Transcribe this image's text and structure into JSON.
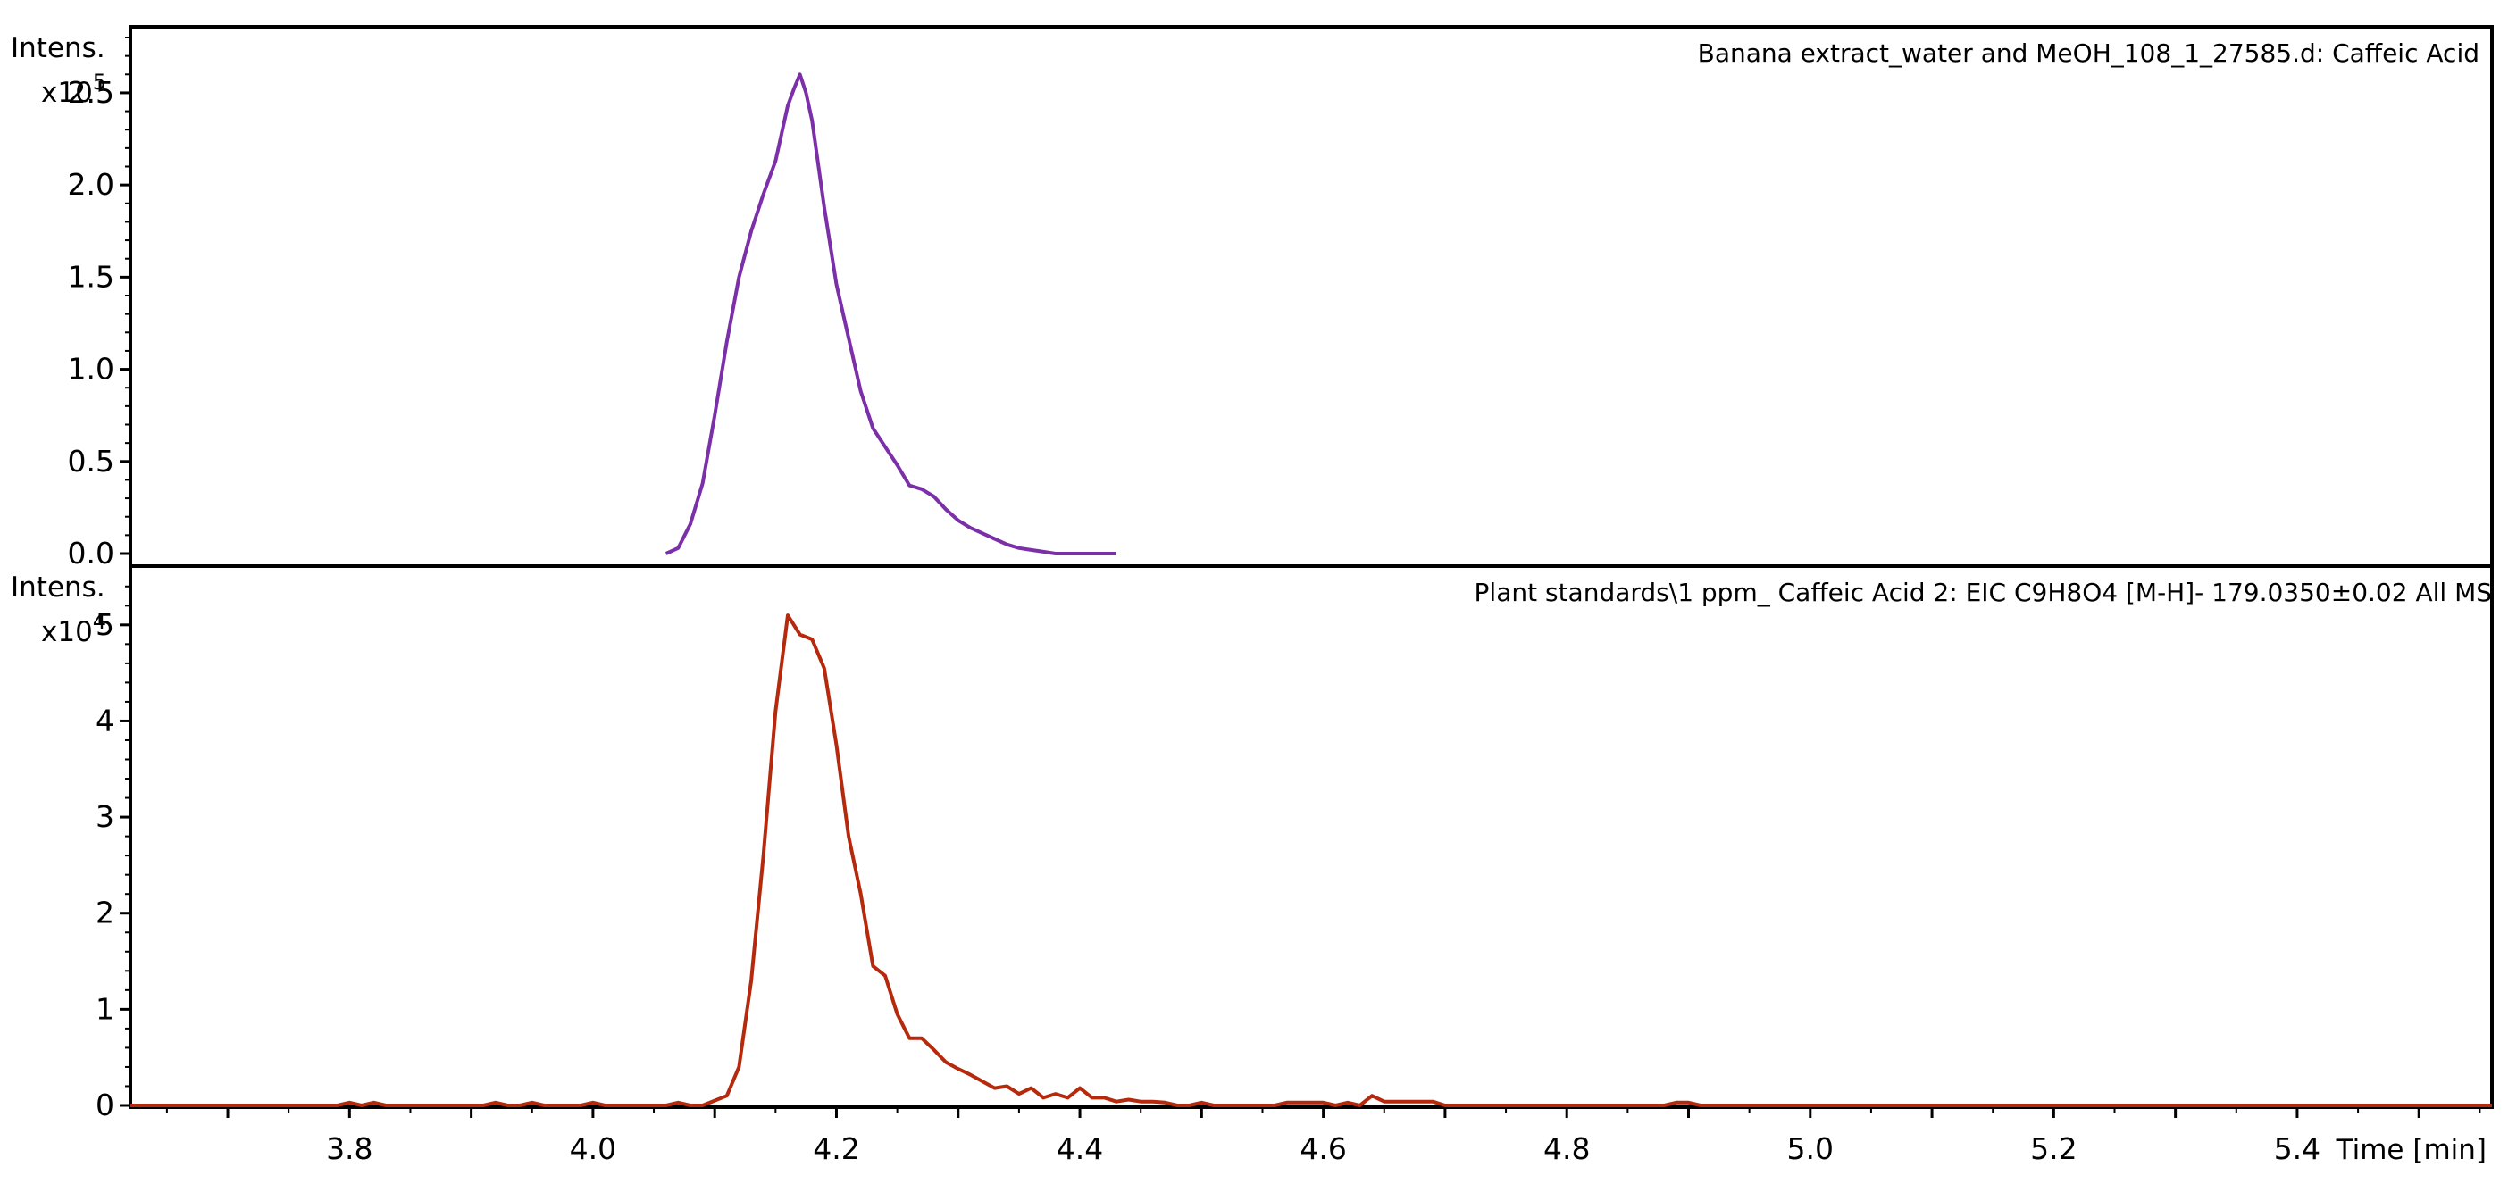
{
  "chart_data": [
    {
      "type": "line",
      "title": "Banana extract_water and MeOH_108_1_27585.d: Caffeic Acid",
      "ylabel": "Intens.",
      "yunit": "x10",
      "yexp": "5",
      "xlim": [
        3.62,
        5.56
      ],
      "ylim": [
        0,
        2.8
      ],
      "yticks": [
        0.0,
        0.5,
        1.0,
        1.5,
        2.0,
        2.5
      ],
      "ytick_labels": [
        "0.0",
        "0.5",
        "1.0",
        "1.5",
        "2.0",
        "2.5"
      ],
      "color": "#7B2FA8",
      "series": [
        {
          "x": [
            4.06,
            4.07,
            4.08,
            4.09,
            4.1,
            4.11,
            4.12,
            4.13,
            4.14,
            4.15,
            4.16,
            4.165,
            4.17,
            4.175,
            4.18,
            4.19,
            4.2,
            4.21,
            4.22,
            4.23,
            4.24,
            4.25,
            4.26,
            4.27,
            4.28,
            4.29,
            4.3,
            4.31,
            4.32,
            4.33,
            4.34,
            4.35,
            4.36,
            4.37,
            4.38,
            4.39,
            4.4,
            4.41,
            4.42,
            4.43
          ],
          "y": [
            0.0,
            0.03,
            0.16,
            0.38,
            0.75,
            1.15,
            1.5,
            1.75,
            1.95,
            2.13,
            2.43,
            2.52,
            2.6,
            2.5,
            2.35,
            1.88,
            1.46,
            1.17,
            0.88,
            0.68,
            0.58,
            0.48,
            0.37,
            0.35,
            0.31,
            0.24,
            0.18,
            0.14,
            0.11,
            0.08,
            0.05,
            0.03,
            0.02,
            0.01,
            0.0,
            0.0,
            0.0,
            0.0,
            0.0,
            0.0
          ]
        }
      ]
    },
    {
      "type": "line",
      "title": "Plant standards\\1 ppm_ Caffeic Acid  2: EIC C9H8O4 [M-H]- 179.0350±0.02 All MS",
      "ylabel": "Intens.",
      "yunit": "x10",
      "yexp": "4",
      "xlim": [
        3.62,
        5.56
      ],
      "ylim": [
        0,
        5.5
      ],
      "yticks": [
        0,
        1,
        2,
        3,
        4,
        5
      ],
      "ytick_labels": [
        "0",
        "1",
        "2",
        "3",
        "4",
        "5"
      ],
      "xticks": [
        3.8,
        4.0,
        4.2,
        4.4,
        4.6,
        4.8,
        5.0,
        5.2,
        5.4
      ],
      "xtick_labels": [
        "3.8",
        "4.0",
        "4.2",
        "4.4",
        "4.6",
        "4.8",
        "5.0",
        "5.2",
        "5.4"
      ],
      "xlabel": "Time [min]",
      "color": "#B5290D",
      "series": [
        {
          "x": [
            3.62,
            3.79,
            3.8,
            3.81,
            3.82,
            3.83,
            3.84,
            3.91,
            3.92,
            3.93,
            3.94,
            3.95,
            3.96,
            3.99,
            4.0,
            4.01,
            4.06,
            4.07,
            4.08,
            4.09,
            4.1,
            4.11,
            4.12,
            4.13,
            4.14,
            4.15,
            4.16,
            4.17,
            4.18,
            4.19,
            4.2,
            4.21,
            4.22,
            4.23,
            4.24,
            4.25,
            4.26,
            4.27,
            4.28,
            4.29,
            4.3,
            4.31,
            4.32,
            4.33,
            4.34,
            4.35,
            4.36,
            4.37,
            4.38,
            4.39,
            4.4,
            4.41,
            4.42,
            4.43,
            4.44,
            4.45,
            4.46,
            4.47,
            4.48,
            4.49,
            4.5,
            4.51,
            4.52,
            4.53,
            4.56,
            4.57,
            4.58,
            4.59,
            4.6,
            4.61,
            4.62,
            4.63,
            4.64,
            4.65,
            4.66,
            4.67,
            4.68,
            4.69,
            4.7,
            4.88,
            4.89,
            4.9,
            4.91,
            5.56
          ],
          "y": [
            0.0,
            0.0,
            0.03,
            0.0,
            0.03,
            0.0,
            0.0,
            0.0,
            0.03,
            0.0,
            0.0,
            0.03,
            0.0,
            0.0,
            0.03,
            0.0,
            0.0,
            0.03,
            0.0,
            0.0,
            0.05,
            0.1,
            0.4,
            1.3,
            2.6,
            4.1,
            5.1,
            4.9,
            4.85,
            4.55,
            3.75,
            2.8,
            2.2,
            1.45,
            1.35,
            0.95,
            0.7,
            0.7,
            0.58,
            0.45,
            0.38,
            0.32,
            0.25,
            0.18,
            0.2,
            0.12,
            0.18,
            0.08,
            0.12,
            0.08,
            0.18,
            0.08,
            0.08,
            0.04,
            0.06,
            0.04,
            0.04,
            0.03,
            0.0,
            0.0,
            0.03,
            0.0,
            0.0,
            0.0,
            0.0,
            0.03,
            0.03,
            0.03,
            0.03,
            0.0,
            0.03,
            0.0,
            0.1,
            0.04,
            0.04,
            0.04,
            0.04,
            0.04,
            0.0,
            0.0,
            0.03,
            0.03,
            0.0,
            0.0
          ]
        }
      ]
    }
  ]
}
